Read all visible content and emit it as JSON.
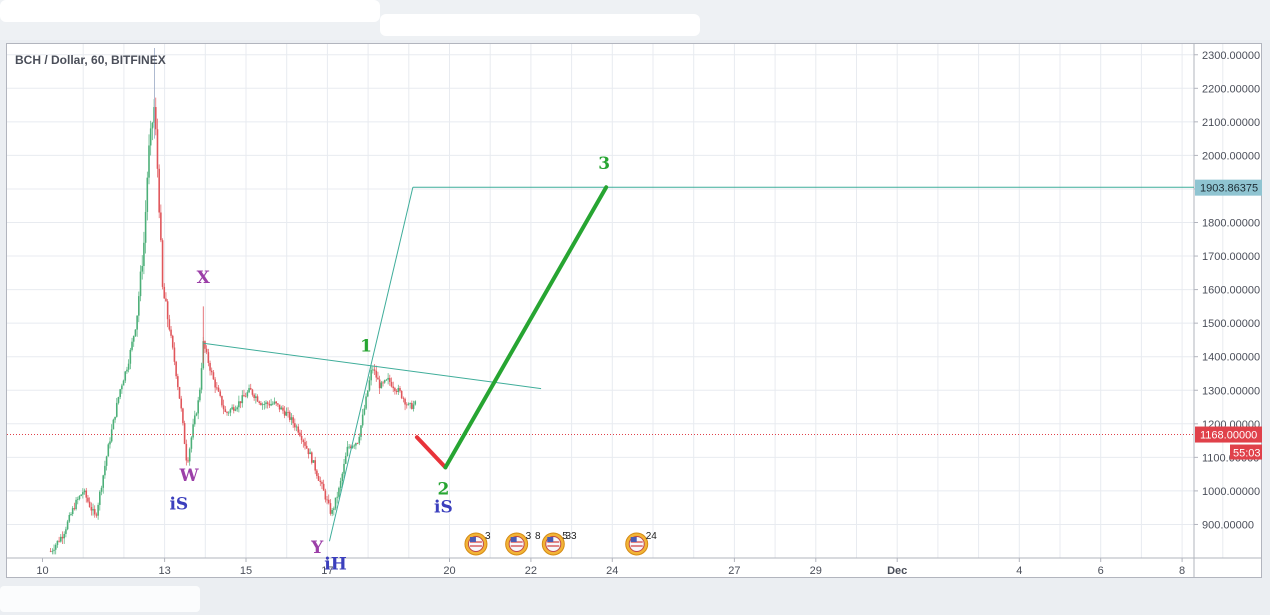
{
  "chart_data": {
    "type": "candlestick",
    "title": "BCH / Dollar, 60, BITFINEX",
    "ylim": [
      800,
      2330
    ],
    "y_ticks": [
      "900.00000",
      "1000.00000",
      "1100.00000",
      "1200.00000",
      "1300.00000",
      "1400.00000",
      "1500.00000",
      "1600.00000",
      "1700.00000",
      "1800.00000",
      "1900.00000",
      "2000.00000",
      "2100.00000",
      "2200.00000",
      "2300.00000"
    ],
    "y_tick_values": [
      900,
      1000,
      1100,
      1200,
      1300,
      1400,
      1500,
      1600,
      1700,
      1800,
      1900,
      2000,
      2100,
      2200,
      2300
    ],
    "x_ticks": [
      {
        "label": "10",
        "day": 10
      },
      {
        "label": "13",
        "day": 13
      },
      {
        "label": "15",
        "day": 15
      },
      {
        "label": "17",
        "day": 17
      },
      {
        "label": "20",
        "day": 20
      },
      {
        "label": "22",
        "day": 22
      },
      {
        "label": "24",
        "day": 24
      },
      {
        "label": "27",
        "day": 27
      },
      {
        "label": "29",
        "day": 29
      },
      {
        "label": "Dec",
        "day": 31
      },
      {
        "label": "4",
        "day": 34
      },
      {
        "label": "6",
        "day": 36
      },
      {
        "label": "8",
        "day": 38
      }
    ],
    "price_path": [
      [
        10.2,
        820
      ],
      [
        10.5,
        870
      ],
      [
        10.8,
        960
      ],
      [
        11.0,
        1000
      ],
      [
        11.3,
        920
      ],
      [
        11.6,
        1120
      ],
      [
        11.9,
        1300
      ],
      [
        12.1,
        1380
      ],
      [
        12.3,
        1500
      ],
      [
        12.5,
        1750
      ],
      [
        12.6,
        2000
      ],
      [
        12.75,
        2150
      ],
      [
        12.85,
        1900
      ],
      [
        12.95,
        1600
      ],
      [
        13.1,
        1500
      ],
      [
        13.25,
        1380
      ],
      [
        13.4,
        1250
      ],
      [
        13.55,
        1080
      ],
      [
        13.7,
        1190
      ],
      [
        13.85,
        1280
      ],
      [
        13.95,
        1440
      ],
      [
        14.2,
        1330
      ],
      [
        14.5,
        1230
      ],
      [
        14.8,
        1260
      ],
      [
        15.1,
        1300
      ],
      [
        15.4,
        1260
      ],
      [
        15.7,
        1260
      ],
      [
        16.0,
        1230
      ],
      [
        16.3,
        1180
      ],
      [
        16.6,
        1100
      ],
      [
        16.9,
        1000
      ],
      [
        17.1,
        930
      ],
      [
        17.3,
        1010
      ],
      [
        17.5,
        1130
      ],
      [
        17.75,
        1150
      ],
      [
        17.9,
        1240
      ],
      [
        18.1,
        1370
      ],
      [
        18.3,
        1310
      ],
      [
        18.5,
        1330
      ],
      [
        18.8,
        1290
      ],
      [
        19.0,
        1250
      ],
      [
        19.2,
        1260
      ]
    ],
    "price_line": {
      "value": 1168.0,
      "label": "1168.00000"
    },
    "countdown": "55:03",
    "target_line": {
      "value": 1903.86375,
      "label": "1903.86375"
    },
    "trendline": {
      "from": [
        13.95,
        1440
      ],
      "to": [
        22.25,
        1305
      ]
    },
    "channel_lines": [
      {
        "from": [
          17.05,
          850
        ],
        "to": [
          19.1,
          1905
        ]
      },
      {
        "from": [
          19.1,
          1905
        ],
        "to": [
          39.5,
          1905
        ]
      }
    ],
    "projection": [
      {
        "from": [
          19.2,
          1160
        ],
        "to": [
          19.9,
          1070
        ],
        "color": "#e8333a"
      },
      {
        "from": [
          19.9,
          1070
        ],
        "to": [
          23.85,
          1905
        ],
        "color": "#27a532"
      }
    ],
    "annotations": [
      {
        "text": "X",
        "day": 13.95,
        "price": 1620,
        "color": "#9c3fa8"
      },
      {
        "text": "W",
        "day": 13.6,
        "price": 1030,
        "color": "#9c3fa8"
      },
      {
        "text": "iS",
        "day": 13.35,
        "price": 945,
        "color": "#3b3fbd"
      },
      {
        "text": "Y",
        "day": 16.75,
        "price": 815,
        "color": "#9c3fa8"
      },
      {
        "text": "iH",
        "day": 17.2,
        "price": 765,
        "color": "#3b3fbd"
      },
      {
        "text": "1",
        "day": 17.95,
        "price": 1415,
        "color": "#27a532"
      },
      {
        "text": "2",
        "day": 19.85,
        "price": 990,
        "color": "#27a532"
      },
      {
        "text": "iS",
        "day": 19.85,
        "price": 935,
        "color": "#3b3fbd"
      },
      {
        "text": "3",
        "day": 23.8,
        "price": 1960,
        "color": "#27a532"
      }
    ],
    "event_icons": [
      {
        "day": 20.65,
        "label": "3"
      },
      {
        "day": 21.65,
        "label": "3"
      },
      {
        "day": 22.1,
        "label": "8"
      },
      {
        "day": 22.55,
        "label": "5"
      },
      {
        "day": 22.85,
        "label": "33"
      },
      {
        "day": 24.6,
        "label": "24"
      }
    ],
    "colors": {
      "up": "#4caf78",
      "down": "#e0565b",
      "target": "#8fc4d1",
      "current": "#e0414a",
      "trend": "#3fad9a",
      "grid": "#e8ebf0"
    }
  }
}
